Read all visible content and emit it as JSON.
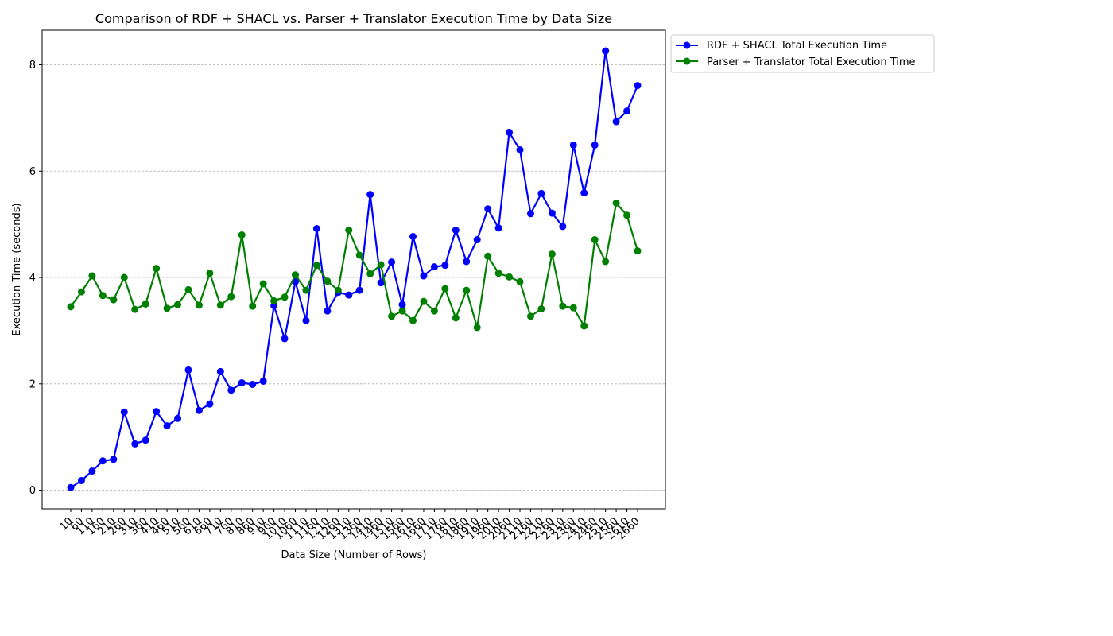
{
  "chart_data": {
    "type": "line",
    "title": "Comparison of RDF + SHACL vs. Parser + Translator Execution Time by Data Size",
    "xlabel": "Data Size (Number of Rows)",
    "ylabel": "Execution Time (seconds)",
    "categories": [
      "10",
      "60",
      "110",
      "160",
      "210",
      "260",
      "310",
      "360",
      "410",
      "460",
      "510",
      "560",
      "610",
      "660",
      "710",
      "760",
      "810",
      "860",
      "910",
      "960",
      "1010",
      "1060",
      "1110",
      "1160",
      "1210",
      "1260",
      "1310",
      "1360",
      "1410",
      "1460",
      "1510",
      "1560",
      "1610",
      "1660",
      "1710",
      "1760",
      "1810",
      "1860",
      "1910",
      "1960",
      "2010",
      "2060",
      "2110",
      "2160",
      "2210",
      "2260",
      "2310",
      "2360",
      "2410",
      "2460",
      "2510",
      "2560",
      "2610",
      "2660"
    ],
    "y_ticks": [
      "0",
      "2",
      "4",
      "6",
      "8"
    ],
    "ylim": [
      -0.35,
      8.65
    ],
    "grid": "y",
    "legend_position": "outside top-right",
    "series": [
      {
        "name": "RDF + SHACL Total Execution Time",
        "color": "#0000ff",
        "values": [
          0.05,
          0.18,
          0.36,
          0.55,
          0.58,
          1.47,
          0.87,
          0.94,
          1.48,
          1.21,
          1.35,
          2.26,
          1.5,
          1.62,
          2.23,
          1.88,
          2.02,
          1.99,
          2.05,
          3.47,
          2.85,
          3.92,
          3.19,
          4.92,
          3.37,
          3.72,
          3.67,
          3.76,
          5.56,
          3.9,
          4.29,
          3.49,
          4.77,
          4.03,
          4.2,
          4.23,
          4.89,
          4.3,
          4.71,
          5.29,
          4.93,
          6.73,
          6.4,
          5.2,
          5.58,
          5.21,
          4.96,
          6.49,
          5.59,
          6.49,
          8.26,
          6.93,
          7.13,
          7.61
        ]
      },
      {
        "name": "Parser + Translator Total Execution Time",
        "color": "#008000",
        "values": [
          3.45,
          3.73,
          4.03,
          3.66,
          3.58,
          4.0,
          3.4,
          3.5,
          4.17,
          3.42,
          3.49,
          3.77,
          3.48,
          4.08,
          3.48,
          3.64,
          4.8,
          3.46,
          3.88,
          3.56,
          3.63,
          4.05,
          3.76,
          4.23,
          3.93,
          3.76,
          4.89,
          4.42,
          4.07,
          4.24,
          3.27,
          3.37,
          3.19,
          3.55,
          3.37,
          3.79,
          3.24,
          3.76,
          3.06,
          4.4,
          4.08,
          4.01,
          3.92,
          3.27,
          3.41,
          4.44,
          3.46,
          3.43,
          3.09,
          4.71,
          4.3,
          5.4,
          5.17,
          4.5
        ]
      }
    ]
  }
}
